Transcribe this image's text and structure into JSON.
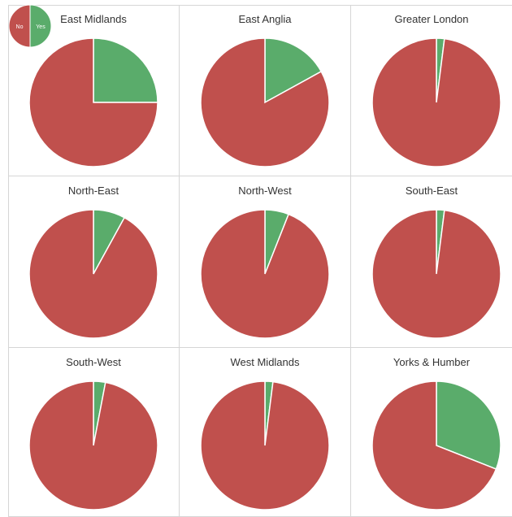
{
  "colors": {
    "no": "#c0504d",
    "yes": "#5aac6b",
    "grid": "#d6d6d6",
    "title": "#333333"
  },
  "legend": {
    "no_label": "No",
    "yes_label": "Yes"
  },
  "chart_data": [
    {
      "type": "pie",
      "title": "East Midlands",
      "labels": [
        "Yes",
        "No"
      ],
      "values": [
        25,
        75
      ]
    },
    {
      "type": "pie",
      "title": "East Anglia",
      "labels": [
        "Yes",
        "No"
      ],
      "values": [
        17,
        83
      ]
    },
    {
      "type": "pie",
      "title": "Greater London",
      "labels": [
        "Yes",
        "No"
      ],
      "values": [
        2,
        98
      ]
    },
    {
      "type": "pie",
      "title": "North-East",
      "labels": [
        "Yes",
        "No"
      ],
      "values": [
        8,
        92
      ]
    },
    {
      "type": "pie",
      "title": "North-West",
      "labels": [
        "Yes",
        "No"
      ],
      "values": [
        6,
        94
      ]
    },
    {
      "type": "pie",
      "title": "South-East",
      "labels": [
        "Yes",
        "No"
      ],
      "values": [
        2,
        98
      ]
    },
    {
      "type": "pie",
      "title": "South-West",
      "labels": [
        "Yes",
        "No"
      ],
      "values": [
        3,
        97
      ]
    },
    {
      "type": "pie",
      "title": "West Midlands",
      "labels": [
        "Yes",
        "No"
      ],
      "values": [
        2,
        98
      ]
    },
    {
      "type": "pie",
      "title": "Yorks & Humber",
      "labels": [
        "Yes",
        "No"
      ],
      "values": [
        31,
        69
      ]
    }
  ]
}
